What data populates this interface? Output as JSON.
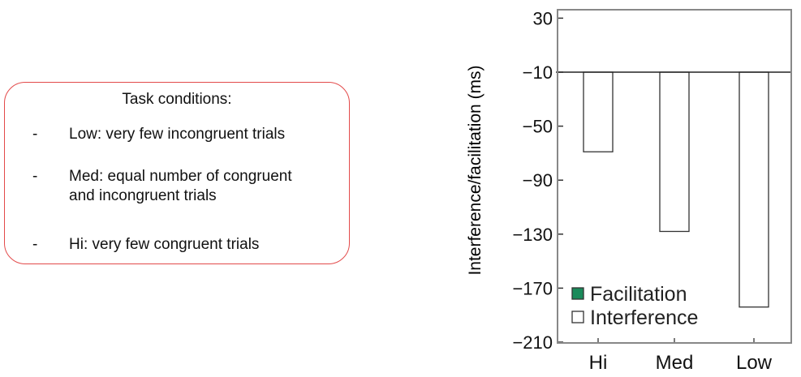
{
  "task_box": {
    "title": "Task conditions:",
    "items": [
      {
        "bullet": "-",
        "text": "Low: very few incongruent trials"
      },
      {
        "bullet": "-",
        "text": "Med: equal number of congruent and incongruent trials"
      },
      {
        "bullet": "-",
        "text": "Hi: very few congruent trials"
      }
    ],
    "border_color": "#e34a4a"
  },
  "chart_data": {
    "type": "bar",
    "categories": [
      "Hi",
      "Med",
      "Low"
    ],
    "series": [
      {
        "name": "Interference",
        "values": [
          -69,
          -128,
          -184
        ],
        "fill": "#ffffff"
      }
    ],
    "legend": [
      {
        "label": "Facilitation",
        "color": "#1a8a5a"
      },
      {
        "label": "Interference",
        "color": "#ffffff"
      }
    ],
    "legend_position": "bottom-left",
    "ylabel": "Interference/facilitation (ms)",
    "xlabel": "",
    "ylim": [
      -215,
      50
    ],
    "yticks": [
      30,
      -10,
      -50,
      -90,
      -130,
      -170,
      -210
    ],
    "ytick_labels": [
      "30",
      "−10",
      "−50",
      "−90",
      "−130",
      "−170",
      "−210"
    ],
    "grid": false
  }
}
